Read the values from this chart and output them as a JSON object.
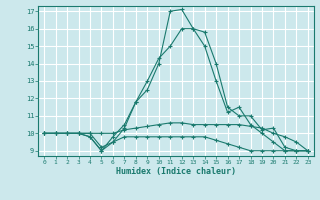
{
  "xlabel": "Humidex (Indice chaleur)",
  "bg_color": "#cce8ec",
  "grid_color": "#ffffff",
  "line_color": "#1a7a6e",
  "xlim": [
    -0.5,
    23.5
  ],
  "ylim": [
    8.7,
    17.3
  ],
  "yticks": [
    9,
    10,
    11,
    12,
    13,
    14,
    15,
    16,
    17
  ],
  "xticks": [
    0,
    1,
    2,
    3,
    4,
    5,
    6,
    7,
    8,
    9,
    10,
    11,
    12,
    13,
    14,
    15,
    16,
    17,
    18,
    19,
    20,
    21,
    22,
    23
  ],
  "line1_x": [
    0,
    1,
    2,
    3,
    4,
    5,
    6,
    7,
    8,
    9,
    10,
    11,
    12,
    13,
    14,
    15,
    16,
    17,
    18,
    19,
    20,
    21,
    22,
    23
  ],
  "line1_y": [
    10.0,
    10.0,
    10.0,
    10.0,
    9.8,
    9.0,
    9.8,
    10.5,
    11.8,
    13.0,
    14.3,
    15.0,
    16.0,
    16.0,
    15.8,
    14.0,
    11.5,
    11.0,
    11.0,
    10.2,
    10.3,
    9.2,
    9.0,
    9.0
  ],
  "line2_x": [
    0,
    1,
    2,
    3,
    4,
    5,
    6,
    7,
    8,
    9,
    10,
    11,
    12,
    13,
    14,
    15,
    16,
    17,
    18,
    19,
    20,
    21,
    22,
    23
  ],
  "line2_y": [
    10.0,
    10.0,
    10.0,
    10.0,
    9.8,
    9.0,
    9.5,
    10.3,
    11.8,
    12.5,
    14.0,
    17.0,
    17.1,
    16.0,
    15.0,
    13.0,
    11.2,
    11.5,
    10.5,
    10.0,
    9.5,
    9.0,
    9.0,
    9.0
  ],
  "line3_x": [
    0,
    1,
    2,
    3,
    4,
    5,
    6,
    7,
    8,
    9,
    10,
    11,
    12,
    13,
    14,
    15,
    16,
    17,
    18,
    19,
    20,
    21,
    22,
    23
  ],
  "line3_y": [
    10.0,
    10.0,
    10.0,
    10.0,
    10.0,
    10.0,
    10.0,
    10.2,
    10.3,
    10.4,
    10.5,
    10.6,
    10.6,
    10.5,
    10.5,
    10.5,
    10.5,
    10.5,
    10.4,
    10.3,
    10.0,
    9.8,
    9.5,
    9.0
  ],
  "line4_x": [
    0,
    1,
    2,
    3,
    4,
    5,
    6,
    7,
    8,
    9,
    10,
    11,
    12,
    13,
    14,
    15,
    16,
    17,
    18,
    19,
    20,
    21,
    22,
    23
  ],
  "line4_y": [
    10.0,
    10.0,
    10.0,
    10.0,
    10.0,
    9.2,
    9.5,
    9.8,
    9.8,
    9.8,
    9.8,
    9.8,
    9.8,
    9.8,
    9.8,
    9.6,
    9.4,
    9.2,
    9.0,
    9.0,
    9.0,
    9.0,
    9.0,
    9.0
  ]
}
